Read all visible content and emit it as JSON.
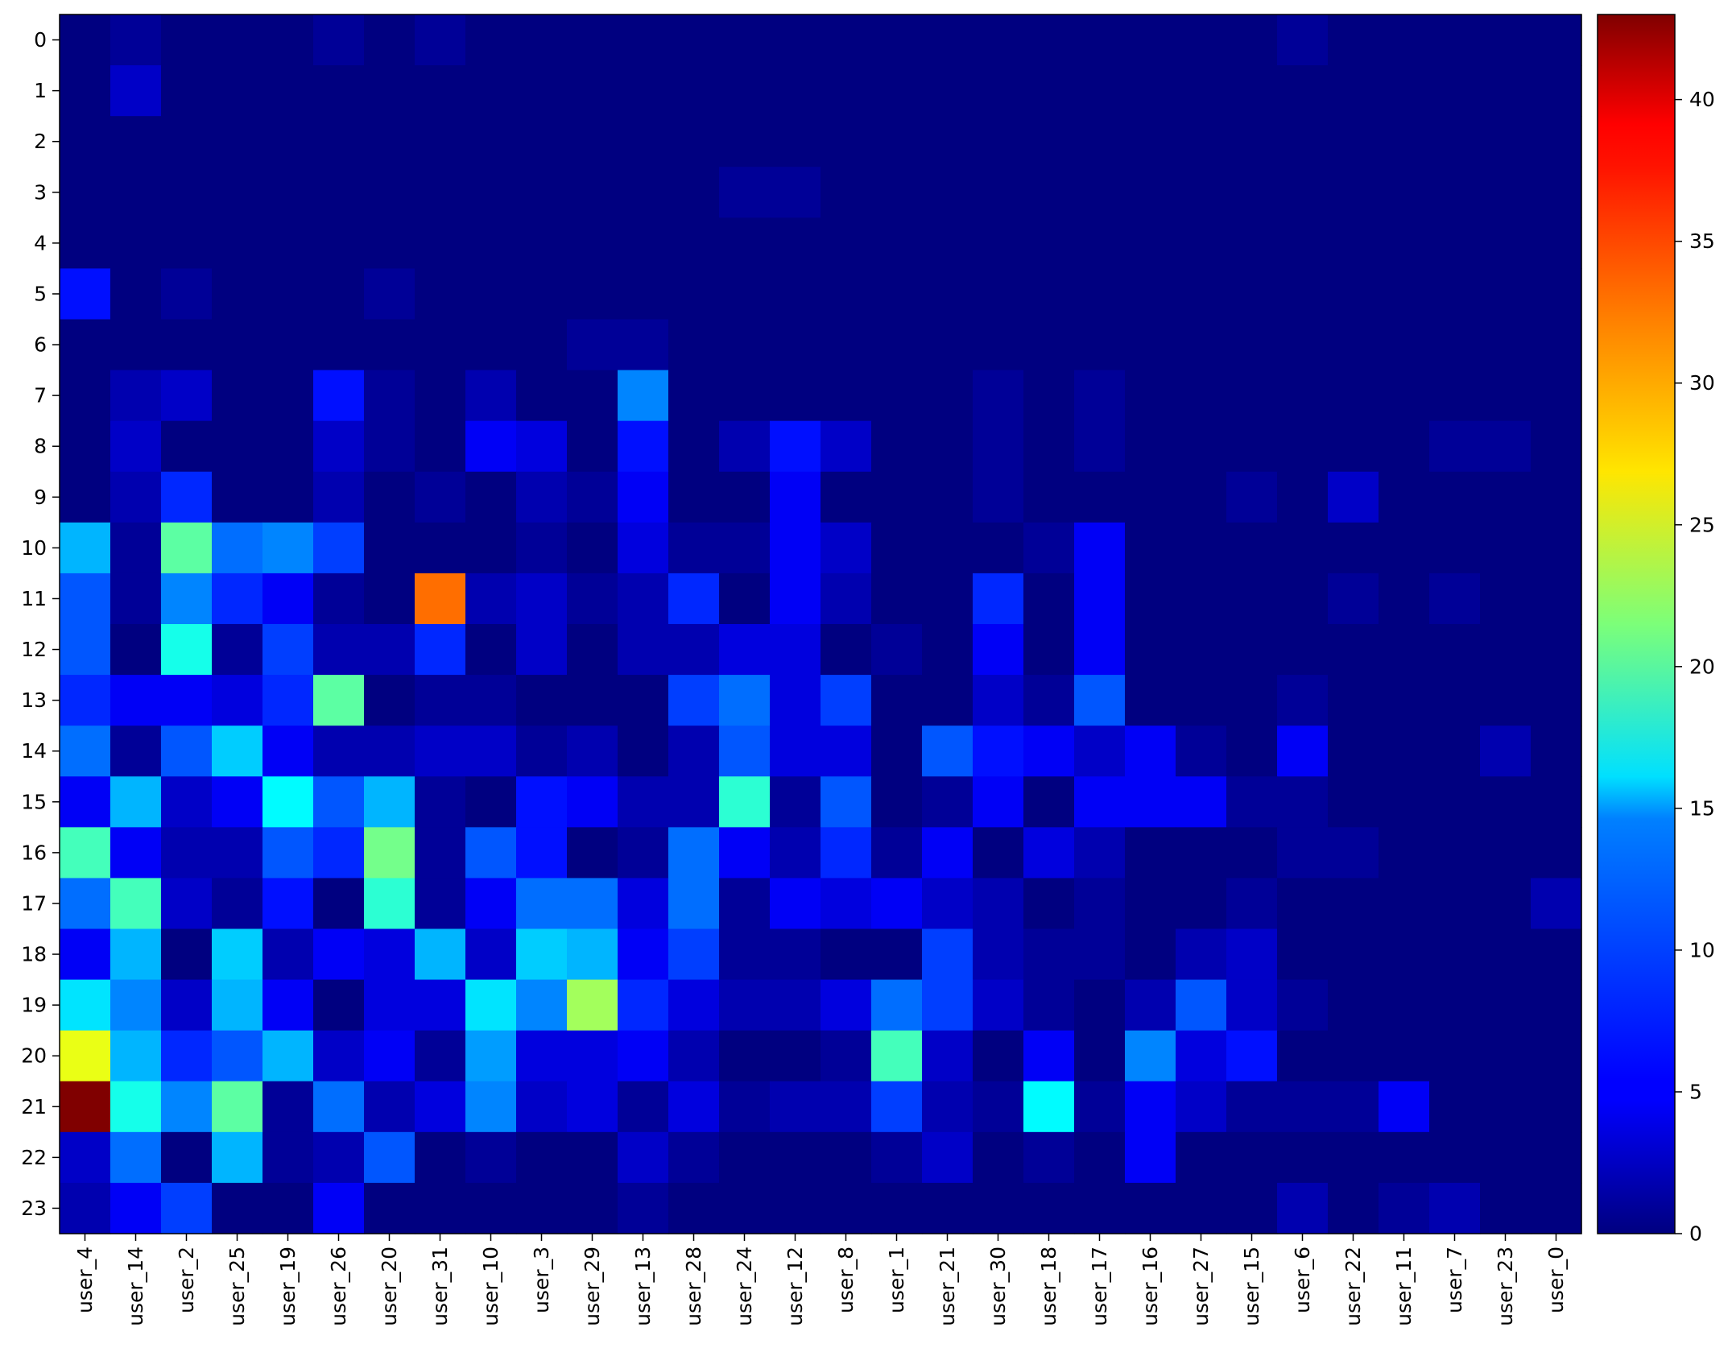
{
  "chart_data": {
    "type": "heatmap",
    "title": "",
    "xlabel": "",
    "ylabel": "",
    "colormap": "jet",
    "value_range": [
      0,
      43
    ],
    "colorbar_ticks": [
      0,
      5,
      10,
      15,
      20,
      25,
      30,
      35,
      40
    ],
    "x_categories": [
      "user_4",
      "user_14",
      "user_2",
      "user_25",
      "user_19",
      "user_26",
      "user_20",
      "user_31",
      "user_10",
      "user_3",
      "user_29",
      "user_13",
      "user_28",
      "user_24",
      "user_12",
      "user_8",
      "user_1",
      "user_21",
      "user_30",
      "user_18",
      "user_17",
      "user_16",
      "user_27",
      "user_15",
      "user_6",
      "user_22",
      "user_11",
      "user_7",
      "user_23",
      "user_0"
    ],
    "y_categories": [
      "0",
      "1",
      "2",
      "3",
      "4",
      "5",
      "6",
      "7",
      "8",
      "9",
      "10",
      "11",
      "12",
      "13",
      "14",
      "15",
      "16",
      "17",
      "18",
      "19",
      "20",
      "21",
      "22",
      "23"
    ],
    "values": [
      [
        0,
        1,
        0,
        0,
        0,
        1,
        0,
        1,
        0,
        0,
        0,
        0,
        0,
        0,
        0,
        0,
        0,
        0,
        0,
        0,
        0,
        0,
        0,
        0,
        1,
        0,
        0,
        0,
        0,
        0
      ],
      [
        0,
        3,
        0,
        0,
        0,
        0,
        0,
        0,
        0,
        0,
        0,
        0,
        0,
        0,
        0,
        0,
        0,
        0,
        0,
        0,
        0,
        0,
        0,
        0,
        0,
        0,
        0,
        0,
        0,
        0
      ],
      [
        0,
        0,
        0,
        0,
        0,
        0,
        0,
        0,
        0,
        0,
        0,
        0,
        0,
        0,
        0,
        0,
        0,
        0,
        0,
        0,
        0,
        0,
        0,
        0,
        0,
        0,
        0,
        0,
        0,
        0
      ],
      [
        0,
        0,
        0,
        0,
        0,
        0,
        0,
        0,
        0,
        0,
        0,
        0,
        0,
        1,
        1,
        0,
        0,
        0,
        0,
        0,
        0,
        0,
        0,
        0,
        0,
        0,
        0,
        0,
        0,
        0
      ],
      [
        0,
        0,
        0,
        0,
        0,
        0,
        0,
        0,
        0,
        0,
        0,
        0,
        0,
        0,
        0,
        0,
        0,
        0,
        0,
        0,
        0,
        0,
        0,
        0,
        0,
        0,
        0,
        0,
        0,
        0
      ],
      [
        6,
        0,
        1,
        0,
        0,
        0,
        1,
        0,
        0,
        0,
        0,
        0,
        0,
        0,
        0,
        0,
        0,
        0,
        0,
        0,
        0,
        0,
        0,
        0,
        0,
        0,
        0,
        0,
        0,
        0
      ],
      [
        0,
        0,
        0,
        0,
        0,
        0,
        0,
        0,
        0,
        0,
        1,
        1,
        0,
        0,
        0,
        0,
        0,
        0,
        0,
        0,
        0,
        0,
        0,
        0,
        0,
        0,
        0,
        0,
        0,
        0
      ],
      [
        0,
        2,
        3,
        0,
        0,
        6,
        1,
        0,
        2,
        0,
        0,
        11,
        0,
        0,
        0,
        0,
        0,
        0,
        1,
        0,
        1,
        0,
        0,
        0,
        0,
        0,
        0,
        0,
        0,
        0
      ],
      [
        0,
        3,
        0,
        0,
        0,
        3,
        1,
        0,
        5,
        4,
        0,
        6,
        0,
        2,
        6,
        3,
        0,
        0,
        1,
        0,
        1,
        0,
        0,
        0,
        0,
        0,
        0,
        1,
        1,
        0
      ],
      [
        0,
        2,
        7,
        0,
        0,
        2,
        0,
        1,
        0,
        2,
        1,
        5,
        0,
        0,
        5,
        0,
        0,
        0,
        1,
        0,
        0,
        0,
        0,
        1,
        0,
        3,
        0,
        0,
        0,
        0
      ],
      [
        13,
        1,
        20,
        10,
        11,
        8,
        0,
        0,
        0,
        1,
        0,
        4,
        1,
        1,
        5,
        3,
        0,
        0,
        0,
        1,
        5,
        0,
        0,
        0,
        0,
        0,
        0,
        0,
        0,
        0
      ],
      [
        9,
        1,
        11,
        7,
        5,
        1,
        0,
        33,
        2,
        3,
        1,
        2,
        7,
        0,
        5,
        2,
        0,
        0,
        7,
        0,
        5,
        0,
        0,
        0,
        0,
        1,
        0,
        1,
        0,
        0
      ],
      [
        9,
        0,
        17,
        1,
        8,
        2,
        2,
        7,
        0,
        3,
        0,
        2,
        2,
        4,
        4,
        0,
        1,
        0,
        5,
        0,
        5,
        0,
        0,
        0,
        0,
        0,
        0,
        0,
        0,
        0
      ],
      [
        7,
        5,
        5,
        4,
        7,
        20,
        0,
        1,
        1,
        0,
        0,
        0,
        8,
        10,
        4,
        8,
        0,
        0,
        3,
        1,
        9,
        0,
        0,
        0,
        1,
        0,
        0,
        0,
        0,
        0
      ],
      [
        10,
        1,
        9,
        14,
        5,
        2,
        2,
        3,
        3,
        1,
        2,
        0,
        2,
        9,
        4,
        4,
        0,
        9,
        6,
        5,
        3,
        5,
        1,
        0,
        5,
        0,
        0,
        0,
        2,
        0
      ],
      [
        5,
        13,
        3,
        5,
        16,
        9,
        13,
        1,
        0,
        6,
        5,
        2,
        2,
        18,
        1,
        9,
        0,
        1,
        5,
        0,
        5,
        5,
        5,
        1,
        1,
        0,
        0,
        0,
        0,
        0
      ],
      [
        19,
        5,
        2,
        2,
        9,
        7,
        21,
        1,
        9,
        6,
        0,
        1,
        10,
        5,
        2,
        7,
        1,
        5,
        0,
        4,
        2,
        0,
        0,
        0,
        1,
        1,
        0,
        0,
        0,
        0
      ],
      [
        10,
        19,
        3,
        1,
        6,
        0,
        18,
        1,
        5,
        10,
        10,
        4,
        10,
        1,
        5,
        4,
        5,
        3,
        2,
        0,
        1,
        0,
        0,
        1,
        0,
        0,
        0,
        0,
        0,
        2
      ],
      [
        5,
        13,
        0,
        14,
        2,
        5,
        4,
        13,
        3,
        14,
        13,
        5,
        8,
        1,
        1,
        0,
        0,
        8,
        2,
        1,
        1,
        0,
        2,
        3,
        0,
        0,
        0,
        0,
        0,
        0
      ],
      [
        15,
        11,
        3,
        13,
        5,
        0,
        4,
        4,
        15,
        11,
        23,
        7,
        4,
        2,
        2,
        4,
        10,
        8,
        3,
        1,
        0,
        2,
        9,
        3,
        1,
        0,
        0,
        0,
        0,
        0
      ],
      [
        26,
        13,
        7,
        9,
        13,
        3,
        5,
        1,
        12,
        4,
        4,
        5,
        2,
        0,
        0,
        1,
        19,
        3,
        0,
        5,
        0,
        11,
        4,
        6,
        0,
        0,
        0,
        0,
        0,
        0
      ],
      [
        43,
        17,
        11,
        20,
        1,
        10,
        2,
        4,
        11,
        3,
        4,
        1,
        4,
        1,
        2,
        2,
        8,
        2,
        1,
        16,
        1,
        5,
        3,
        1,
        1,
        1,
        5,
        0,
        0,
        0
      ],
      [
        3,
        10,
        0,
        13,
        1,
        2,
        9,
        0,
        1,
        0,
        0,
        3,
        1,
        0,
        0,
        0,
        1,
        3,
        0,
        1,
        0,
        5,
        0,
        0,
        0,
        0,
        0,
        0,
        0,
        0
      ],
      [
        2,
        5,
        8,
        0,
        0,
        5,
        0,
        0,
        0,
        0,
        0,
        1,
        0,
        0,
        0,
        0,
        0,
        0,
        0,
        0,
        0,
        0,
        0,
        0,
        2,
        0,
        1,
        2,
        0,
        0
      ]
    ]
  }
}
